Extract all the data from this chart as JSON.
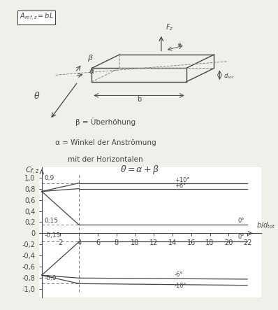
{
  "bg_color": "#f0f0eb",
  "line_color": "#444444",
  "dashed_color": "#777777",
  "gray": "#888888",
  "desc_text1": "β = Überhöhung",
  "desc_text2": "α = Winkel der Anströmung",
  "desc_text3": "mit der Horizontalen",
  "xticks": [
    2,
    4,
    6,
    8,
    10,
    12,
    14,
    16,
    18,
    20,
    22
  ],
  "ytick_labels": [
    "-1,0",
    "-0,8",
    "-0,6",
    "-0,4",
    "-0,2",
    "0",
    "0,2",
    "0,4",
    "0,6",
    "0,8",
    "1,0"
  ],
  "ytick_vals": [
    -1.0,
    -0.8,
    -0.6,
    -0.4,
    -0.2,
    0.0,
    0.2,
    0.4,
    0.6,
    0.8,
    1.0
  ]
}
